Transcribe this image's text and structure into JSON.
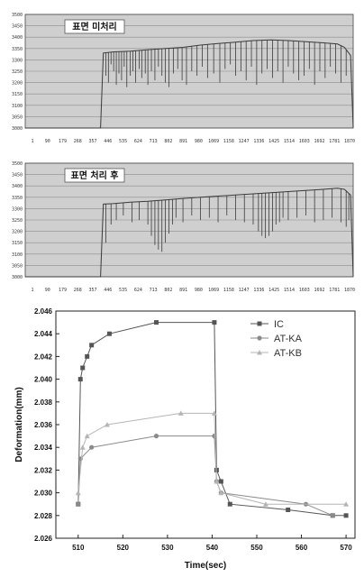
{
  "chart_data": [
    {
      "type": "line",
      "title": "표면 미처리",
      "yticks": [
        "3500",
        "3450",
        "3400",
        "3350",
        "3300",
        "3250",
        "3200",
        "3150",
        "3100",
        "3050",
        "3000"
      ],
      "ylim": [
        3000,
        3500
      ],
      "xticks": [
        "1",
        "90",
        "179",
        "268",
        "357",
        "446",
        "535",
        "624",
        "713",
        "802",
        "891",
        "980",
        "1069",
        "1158",
        "1247",
        "1336",
        "1425",
        "1514",
        "1603",
        "1692",
        "1781",
        "1870"
      ],
      "xlim": [
        1,
        1870
      ],
      "grid": true,
      "series": [
        {
          "values_note": "",
          "x": [
            1,
            430,
            446,
            500,
            600,
            700,
            800,
            900,
            1000,
            1100,
            1200,
            1300,
            1400,
            1500,
            1600,
            1700,
            1780,
            1820,
            1855,
            1870
          ],
          "y": [
            3000,
            3000,
            3330,
            3335,
            3338,
            3345,
            3350,
            3355,
            3365,
            3372,
            3378,
            3385,
            3388,
            3385,
            3380,
            3375,
            3370,
            3355,
            3320,
            3000
          ],
          "drops": [
            460,
            475,
            490,
            505,
            520,
            535,
            550,
            565,
            580,
            600,
            615,
            630,
            650,
            665,
            685,
            700,
            720,
            740,
            760,
            780,
            800,
            820,
            845,
            870,
            895,
            920,
            950,
            980,
            1010,
            1040,
            1075,
            1110,
            1140,
            1170,
            1200,
            1230,
            1260,
            1290,
            1320,
            1350,
            1380,
            1410,
            1440,
            1470,
            1500,
            1530,
            1560,
            1590,
            1620,
            1650,
            1680,
            1710,
            1740,
            1770,
            1800,
            1830
          ],
          "drop_depth": [
            3230,
            3200,
            3280,
            3250,
            3190,
            3240,
            3210,
            3270,
            3180,
            3230,
            3250,
            3200,
            3260,
            3220,
            3240,
            3190,
            3250,
            3210,
            3270,
            3230,
            3200,
            3180,
            3240,
            3260,
            3210,
            3190,
            3250,
            3230,
            3270,
            3220,
            3240,
            3200,
            3260,
            3280,
            3230,
            3250,
            3210,
            3270,
            3190,
            3240,
            3260,
            3220,
            3250,
            3200,
            3270,
            3240,
            3210,
            3230,
            3260,
            3190,
            3250,
            3220,
            3270,
            3240,
            3200,
            3230
          ]
        }
      ]
    },
    {
      "type": "line",
      "title": "표면 처리 후",
      "yticks": [
        "3500",
        "3450",
        "3400",
        "3350",
        "3300",
        "3250",
        "3200",
        "3150",
        "3100",
        "3050",
        "3000"
      ],
      "ylim": [
        3000,
        3500
      ],
      "xticks": [
        "1",
        "90",
        "179",
        "268",
        "357",
        "446",
        "535",
        "624",
        "713",
        "802",
        "891",
        "980",
        "1069",
        "1158",
        "1247",
        "1336",
        "1425",
        "1514",
        "1603",
        "1692",
        "1781",
        "1870"
      ],
      "xlim": [
        1,
        1870
      ],
      "grid": true,
      "series": [
        {
          "x": [
            1,
            430,
            446,
            500,
            600,
            700,
            800,
            900,
            1000,
            1100,
            1200,
            1300,
            1400,
            1500,
            1600,
            1700,
            1780,
            1820,
            1855,
            1870
          ],
          "y": [
            3000,
            3000,
            3320,
            3322,
            3328,
            3332,
            3338,
            3345,
            3350,
            3355,
            3360,
            3365,
            3370,
            3375,
            3380,
            3385,
            3390,
            3385,
            3360,
            3000
          ],
          "drops": [
            460,
            490,
            520,
            560,
            610,
            650,
            700,
            720,
            740,
            760,
            780,
            800,
            820,
            840,
            860,
            900,
            950,
            1000,
            1050,
            1100,
            1150,
            1200,
            1250,
            1300,
            1330,
            1350,
            1370,
            1390,
            1410,
            1430,
            1450,
            1470,
            1500,
            1550,
            1600,
            1650,
            1700,
            1750,
            1800,
            1830,
            1845
          ],
          "drop_depth": [
            3150,
            3230,
            3250,
            3270,
            3240,
            3250,
            3230,
            3180,
            3140,
            3120,
            3110,
            3150,
            3190,
            3230,
            3260,
            3240,
            3270,
            3250,
            3260,
            3240,
            3270,
            3250,
            3240,
            3230,
            3200,
            3180,
            3170,
            3180,
            3200,
            3230,
            3240,
            3260,
            3250,
            3260,
            3270,
            3240,
            3250,
            3260,
            3240,
            3220,
            3250
          ]
        }
      ]
    },
    {
      "type": "line",
      "title": "",
      "xlabel": "Time(sec)",
      "ylabel": "Deformation(mm)",
      "xlim": [
        505,
        572
      ],
      "ylim": [
        2.026,
        2.046
      ],
      "xticks": [
        "510",
        "520",
        "530",
        "540",
        "550",
        "560",
        "570"
      ],
      "yticks": [
        "2.046",
        "2.044",
        "2.042",
        "2.040",
        "2.038",
        "2.036",
        "2.034",
        "2.032",
        "2.030",
        "2.028",
        "2.026"
      ],
      "legend_position": "top-right",
      "grid": false,
      "series": [
        {
          "name": "IC",
          "color": "#555555",
          "marker": "square",
          "x": [
            510,
            510.5,
            511,
            512,
            513,
            517,
            527.5,
            540.5,
            541,
            542,
            544,
            557,
            567,
            570
          ],
          "y": [
            2.029,
            2.04,
            2.041,
            2.042,
            2.043,
            2.044,
            2.045,
            2.045,
            2.032,
            2.031,
            2.029,
            2.0285,
            2.028,
            2.028
          ]
        },
        {
          "name": "AT-KA",
          "color": "#8a8a8a",
          "marker": "circle",
          "x": [
            510,
            510.5,
            513,
            527.5,
            540.5,
            541,
            542,
            561,
            567
          ],
          "y": [
            2.029,
            2.033,
            2.034,
            2.035,
            2.035,
            2.031,
            2.03,
            2.029,
            2.028
          ]
        },
        {
          "name": "AT-KB",
          "color": "#b5b5b5",
          "marker": "triangle",
          "x": [
            510,
            511,
            512,
            516.5,
            533,
            540.5,
            541,
            542,
            552,
            570
          ],
          "y": [
            2.03,
            2.034,
            2.035,
            2.036,
            2.037,
            2.037,
            2.031,
            2.03,
            2.029,
            2.029
          ]
        }
      ]
    }
  ]
}
